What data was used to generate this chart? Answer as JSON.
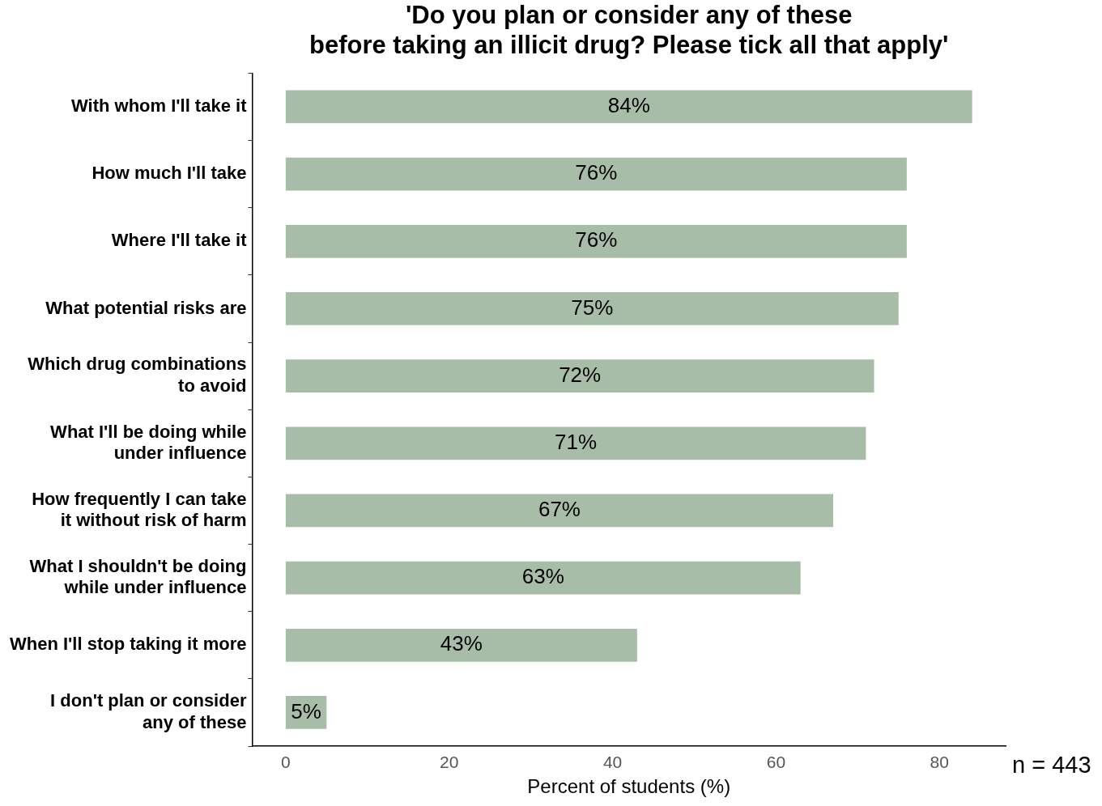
{
  "chart_data": {
    "type": "bar",
    "orientation": "horizontal",
    "title": "'Do you plan or consider any of these\nbefore taking an illicit drug? Please tick all that apply'",
    "categories": [
      "With whom I'll take it",
      "How much I'll take",
      "Where I'll take it",
      "What potential risks are",
      "Which drug combinations\nto avoid",
      "What I'll be doing while\nunder influence",
      "How frequently I can take\nit without risk of harm",
      "What I shouldn't be doing\nwhile under influence",
      "When I'll stop taking it more",
      "I don't plan or consider\nany of these"
    ],
    "values": [
      84,
      76,
      76,
      75,
      72,
      71,
      67,
      63,
      43,
      5
    ],
    "color": "#a8bda8",
    "value_labels": [
      "84%",
      "76%",
      "76%",
      "75%",
      "72%",
      "71%",
      "67%",
      "63%",
      "43%",
      "5%"
    ],
    "xlabel": "Percent of students (%)",
    "xlim": [
      -4.1,
      88.1
    ],
    "xticks": [
      0,
      20,
      40,
      60,
      80
    ],
    "grid": false,
    "legend": false,
    "annotations": [
      "n = 443"
    ]
  }
}
